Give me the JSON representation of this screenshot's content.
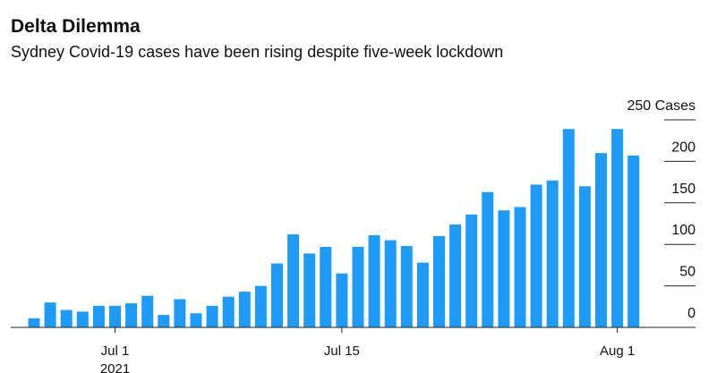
{
  "chart_data": {
    "type": "bar",
    "title": "Delta Dilemma",
    "subtitle": "Sydney Covid-19 cases have been rising despite five-week lockdown",
    "categories": [
      null,
      null,
      null,
      null,
      null,
      "Jul 1",
      null,
      null,
      null,
      null,
      null,
      null,
      null,
      null,
      null,
      null,
      null,
      null,
      null,
      "Jul 15",
      null,
      null,
      null,
      null,
      null,
      null,
      null,
      null,
      null,
      null,
      null,
      null,
      null,
      null,
      null,
      null,
      "Aug 1",
      null
    ],
    "x_year_label": "2021",
    "values": [
      11,
      30,
      21,
      19,
      26,
      26,
      29,
      38,
      15,
      34,
      17,
      26,
      37,
      43,
      50,
      77,
      112,
      89,
      97,
      65,
      97,
      111,
      105,
      98,
      78,
      110,
      124,
      136,
      163,
      141,
      145,
      172,
      177,
      239,
      170,
      210,
      239,
      207
    ],
    "color": "#1f9bf7",
    "ylim": [
      0,
      250
    ],
    "yticks": [
      0,
      50,
      100,
      150,
      200,
      {
        "value": 250,
        "label": "250 Cases"
      }
    ],
    "grid": false
  }
}
